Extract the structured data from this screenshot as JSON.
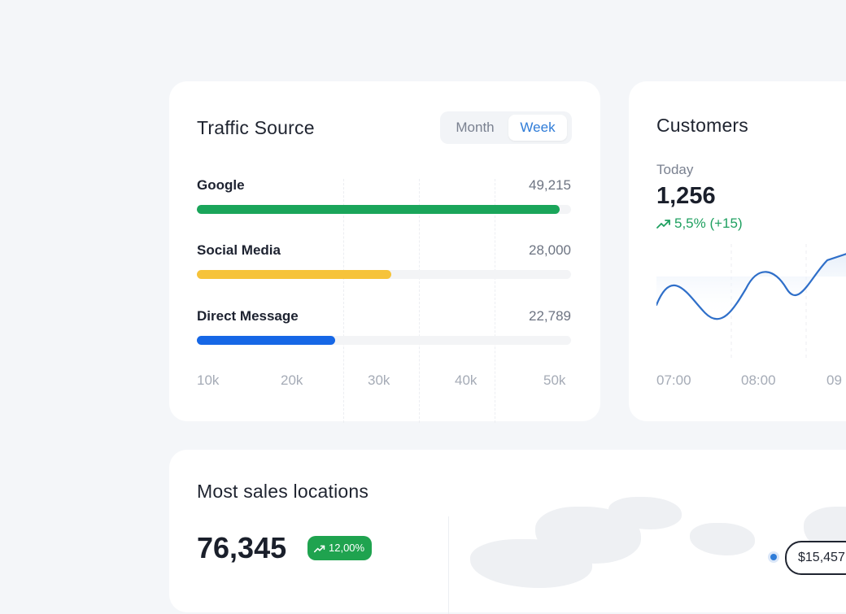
{
  "traffic": {
    "title": "Traffic Source",
    "toggle": {
      "month": "Month",
      "week": "Week"
    },
    "sources": [
      {
        "label": "Google",
        "value": "49,215",
        "fill_fraction": 0.97,
        "color": "#1aa55a"
      },
      {
        "label": "Social Media",
        "value": "28,000",
        "fill_fraction": 0.52,
        "color": "#f6c33a"
      },
      {
        "label": "Direct Message",
        "value": "22,789",
        "fill_fraction": 0.37,
        "color": "#1667e6"
      }
    ],
    "axis": [
      "10k",
      "20k",
      "30k",
      "40k",
      "50k"
    ]
  },
  "customers": {
    "title": "Customers",
    "subtitle": "Today",
    "value": "1,256",
    "change": "5,5% (+15)",
    "line_color": "#2f6fc9",
    "axis": [
      "07:00",
      "08:00",
      "09"
    ]
  },
  "sales": {
    "title": "Most sales locations",
    "value": "76,345",
    "badge": "12,00%",
    "price": "$15,457."
  }
}
